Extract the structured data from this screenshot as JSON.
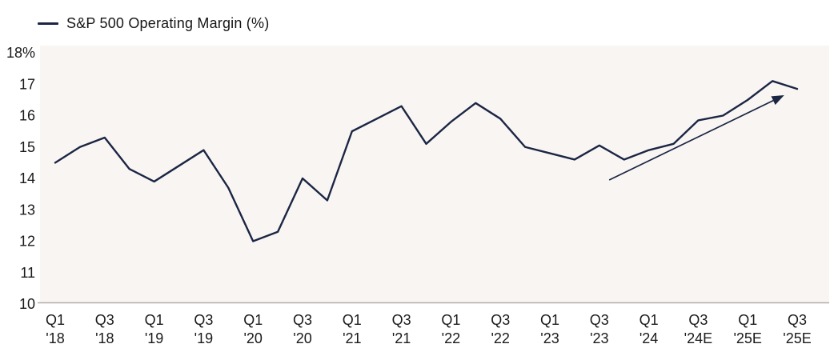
{
  "legend": {
    "label": "S&P 500 Operating Margin (%)"
  },
  "chart_data": {
    "type": "line",
    "title": "S&P 500 Operating Margin (%)",
    "xlabel": "",
    "ylabel": "",
    "ylim": [
      10,
      18
    ],
    "grid": false,
    "legend_position": "top-left",
    "x_categories": [
      "Q1 '18",
      "Q2 '18",
      "Q3 '18",
      "Q4 '18",
      "Q1 '19",
      "Q2 '19",
      "Q3 '19",
      "Q4 '19",
      "Q1 '20",
      "Q2 '20",
      "Q3 '20",
      "Q4 '20",
      "Q1 '21",
      "Q2 '21",
      "Q3 '21",
      "Q4 '21",
      "Q1 '22",
      "Q2 '22",
      "Q3 '22",
      "Q4 '22",
      "Q1 '23",
      "Q2 '23",
      "Q3 '23",
      "Q4 '23",
      "Q1 '24",
      "Q2 '24",
      "Q3 '24E",
      "Q4 '24E",
      "Q1 '25E",
      "Q2 '25E",
      "Q3 '25E"
    ],
    "series": [
      {
        "name": "S&P 500 Operating Margin (%)",
        "values": [
          14.5,
          15.0,
          15.3,
          14.3,
          13.9,
          14.4,
          14.9,
          13.7,
          12.0,
          12.3,
          14.0,
          13.3,
          15.5,
          15.9,
          16.3,
          15.1,
          15.8,
          16.4,
          15.9,
          15.0,
          14.8,
          14.6,
          15.05,
          14.6,
          14.9,
          15.1,
          15.85,
          16.0,
          16.5,
          17.1,
          16.85
        ]
      }
    ],
    "y_ticks": [
      {
        "label": "18%",
        "value": 18
      },
      {
        "label": "17",
        "value": 17
      },
      {
        "label": "16",
        "value": 16
      },
      {
        "label": "15",
        "value": 15
      },
      {
        "label": "14",
        "value": 14
      },
      {
        "label": "13",
        "value": 13
      },
      {
        "label": "12",
        "value": 12
      },
      {
        "label": "11",
        "value": 11
      },
      {
        "label": "10",
        "value": 10
      }
    ],
    "x_tick_labels": [
      {
        "index": 0,
        "line1": "Q1",
        "line2": "'18"
      },
      {
        "index": 2,
        "line1": "Q3",
        "line2": "'18"
      },
      {
        "index": 4,
        "line1": "Q1",
        "line2": "'19"
      },
      {
        "index": 6,
        "line1": "Q3",
        "line2": "'19"
      },
      {
        "index": 8,
        "line1": "Q1",
        "line2": "'20"
      },
      {
        "index": 10,
        "line1": "Q3",
        "line2": "'20"
      },
      {
        "index": 12,
        "line1": "Q1",
        "line2": "'21"
      },
      {
        "index": 14,
        "line1": "Q3",
        "line2": "'21"
      },
      {
        "index": 16,
        "line1": "Q1",
        "line2": "'22"
      },
      {
        "index": 18,
        "line1": "Q3",
        "line2": "'22"
      },
      {
        "index": 20,
        "line1": "Q1",
        "line2": "'23"
      },
      {
        "index": 22,
        "line1": "Q3",
        "line2": "'23"
      },
      {
        "index": 24,
        "line1": "Q1",
        "line2": "'24"
      },
      {
        "index": 26,
        "line1": "Q3",
        "line2": "'24E"
      },
      {
        "index": 28,
        "line1": "Q1",
        "line2": "'25E"
      },
      {
        "index": 30,
        "line1": "Q3",
        "line2": "'25E"
      }
    ],
    "annotations": [
      {
        "type": "arrow",
        "from_index": 22.4,
        "from_value": 13.95,
        "to_index": 29.4,
        "to_value": 16.62
      }
    ],
    "colors": {
      "line": "#1b2644",
      "arrow": "#1b2644",
      "plot_bg": "#f9f5f2",
      "axis_line": "#b3aeaa",
      "text": "#1a1a1a"
    }
  }
}
